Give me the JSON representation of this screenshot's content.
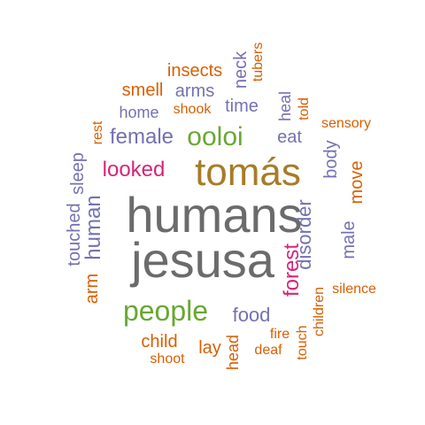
{
  "words": [
    {
      "id": "humans",
      "text": "humans",
      "color": "#6b6b6b"
    },
    {
      "id": "jesusa",
      "text": "jesusa",
      "color": "#6b6b6b"
    },
    {
      "id": "tomas",
      "text": "tomás",
      "color": "#a67c28"
    },
    {
      "id": "people",
      "text": "people",
      "color": "#68a832"
    },
    {
      "id": "ooloi",
      "text": "ooloi",
      "color": "#68a832"
    },
    {
      "id": "looked",
      "text": "looked",
      "color": "#d6257a"
    },
    {
      "id": "female",
      "text": "female",
      "color": "#7570b3"
    },
    {
      "id": "forest",
      "text": "forest",
      "color": "#d6257a"
    },
    {
      "id": "human",
      "text": "human",
      "color": "#7570b3"
    },
    {
      "id": "disorder",
      "text": "disorder",
      "color": "#7570b3"
    },
    {
      "id": "food",
      "text": "food",
      "color": "#7570b3"
    },
    {
      "id": "sleep",
      "text": "sleep",
      "color": "#7570b3"
    },
    {
      "id": "touched",
      "text": "touched",
      "color": "#7570b3"
    },
    {
      "id": "body",
      "text": "body",
      "color": "#7570b3"
    },
    {
      "id": "move",
      "text": "move",
      "color": "#d95f02"
    },
    {
      "id": "male",
      "text": "male",
      "color": "#7570b3"
    },
    {
      "id": "eat",
      "text": "eat",
      "color": "#7570b3"
    },
    {
      "id": "time",
      "text": "time",
      "color": "#7570b3"
    },
    {
      "id": "insects",
      "text": "insects",
      "color": "#d95f02"
    },
    {
      "id": "smell",
      "text": "smell",
      "color": "#d95f02"
    },
    {
      "id": "arms",
      "text": "arms",
      "color": "#7570b3"
    },
    {
      "id": "neck",
      "text": "neck",
      "color": "#7570b3"
    },
    {
      "id": "home",
      "text": "home",
      "color": "#7570b3"
    },
    {
      "id": "shook",
      "text": "shook",
      "color": "#d95f02"
    },
    {
      "id": "tubers",
      "text": "tubers",
      "color": "#d95f02"
    },
    {
      "id": "heal",
      "text": "heal",
      "color": "#7570b3"
    },
    {
      "id": "told",
      "text": "told",
      "color": "#d95f02"
    },
    {
      "id": "rest",
      "text": "rest",
      "color": "#d95f02"
    },
    {
      "id": "sensory",
      "text": "sensory",
      "color": "#d95f02"
    },
    {
      "id": "arm",
      "text": "arm",
      "color": "#d95f02"
    },
    {
      "id": "silence",
      "text": "silence",
      "color": "#d95f02"
    },
    {
      "id": "children",
      "text": "children",
      "color": "#d95f02"
    },
    {
      "id": "child",
      "text": "child",
      "color": "#d95f02"
    },
    {
      "id": "shoot",
      "text": "shoot",
      "color": "#d95f02"
    },
    {
      "id": "lay",
      "text": "lay",
      "color": "#d95f02"
    },
    {
      "id": "head",
      "text": "head",
      "color": "#d95f02"
    },
    {
      "id": "fire",
      "text": "fire",
      "color": "#d95f02"
    },
    {
      "id": "deaf",
      "text": "deaf",
      "color": "#d95f02"
    },
    {
      "id": "touch",
      "text": "touch",
      "color": "#d95f02"
    }
  ]
}
